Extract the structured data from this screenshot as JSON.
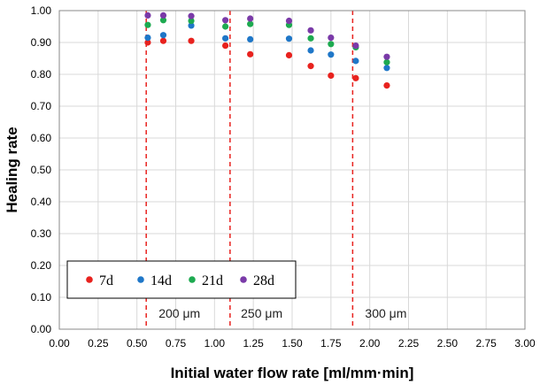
{
  "chart_data": {
    "type": "scatter",
    "xlabel": "Initial water flow rate [ml/mm·min]",
    "ylabel": "Healing rate",
    "xlim": [
      0,
      3
    ],
    "ylim": [
      0,
      1
    ],
    "x_ticks": [
      "0.00",
      "0.25",
      "0.50",
      "0.75",
      "1.00",
      "1.25",
      "1.50",
      "1.75",
      "2.00",
      "2.25",
      "2.50",
      "2.75",
      "3.00"
    ],
    "y_ticks": [
      "0.00",
      "0.10",
      "0.20",
      "0.30",
      "0.40",
      "0.50",
      "0.60",
      "0.70",
      "0.80",
      "0.90",
      "1.00"
    ],
    "grid": true,
    "legend_position": "bottom-left",
    "series": [
      {
        "name": "7d",
        "color": "#e8221e",
        "points": [
          [
            0.57,
            0.9
          ],
          [
            0.67,
            0.905
          ],
          [
            0.85,
            0.905
          ],
          [
            1.07,
            0.89
          ],
          [
            1.23,
            0.863
          ],
          [
            1.48,
            0.86
          ],
          [
            1.62,
            0.826
          ],
          [
            1.75,
            0.796
          ],
          [
            1.91,
            0.788
          ],
          [
            2.11,
            0.765
          ]
        ]
      },
      {
        "name": "14d",
        "color": "#1f77c8",
        "points": [
          [
            0.57,
            0.915
          ],
          [
            0.67,
            0.923
          ],
          [
            0.85,
            0.953
          ],
          [
            1.07,
            0.913
          ],
          [
            1.23,
            0.91
          ],
          [
            1.48,
            0.912
          ],
          [
            1.62,
            0.875
          ],
          [
            1.75,
            0.862
          ],
          [
            1.91,
            0.842
          ],
          [
            2.11,
            0.82
          ]
        ]
      },
      {
        "name": "21d",
        "color": "#1daa50",
        "points": [
          [
            0.57,
            0.955
          ],
          [
            0.67,
            0.97
          ],
          [
            0.85,
            0.968
          ],
          [
            1.07,
            0.95
          ],
          [
            1.23,
            0.958
          ],
          [
            1.48,
            0.955
          ],
          [
            1.62,
            0.913
          ],
          [
            1.75,
            0.895
          ],
          [
            1.91,
            0.885
          ],
          [
            2.11,
            0.838
          ]
        ]
      },
      {
        "name": "28d",
        "color": "#7a3aa8",
        "points": [
          [
            0.57,
            0.985
          ],
          [
            0.67,
            0.985
          ],
          [
            0.85,
            0.983
          ],
          [
            1.07,
            0.97
          ],
          [
            1.23,
            0.975
          ],
          [
            1.48,
            0.968
          ],
          [
            1.62,
            0.938
          ],
          [
            1.75,
            0.915
          ],
          [
            1.91,
            0.89
          ],
          [
            2.11,
            0.855
          ]
        ]
      }
    ],
    "reference_lines": [
      {
        "x": 0.56,
        "color": "#e8221e"
      },
      {
        "x": 1.1,
        "color": "#e8221e"
      },
      {
        "x": 1.89,
        "color": "#e8221e"
      }
    ],
    "annotations": [
      {
        "text": "200 μm",
        "x": 0.64,
        "y": 0.05
      },
      {
        "text": "250 μm",
        "x": 1.17,
        "y": 0.05
      },
      {
        "text": "300 μm",
        "x": 1.97,
        "y": 0.05
      }
    ]
  }
}
